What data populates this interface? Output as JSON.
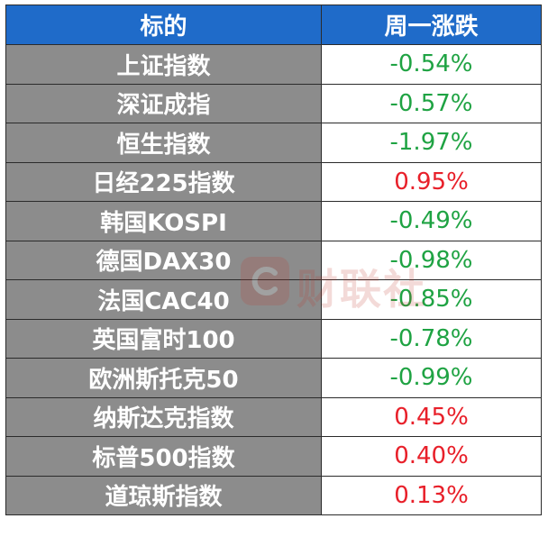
{
  "header": {
    "col_name": "标的",
    "col_change": "周一涨跌"
  },
  "colors": {
    "header_bg": "#1f6bc9",
    "name_bg": "#8c8c8c",
    "up": "#e8202a",
    "down": "#1fa343"
  },
  "rows": [
    {
      "name": "上证指数",
      "change": "-0.54%",
      "dir": "down"
    },
    {
      "name": "深证成指",
      "change": "-0.57%",
      "dir": "down"
    },
    {
      "name": "恒生指数",
      "change": "-1.97%",
      "dir": "down"
    },
    {
      "name": "日经225指数",
      "change": "0.95%",
      "dir": "up"
    },
    {
      "name": "韩国KOSPI",
      "change": "-0.49%",
      "dir": "down"
    },
    {
      "name": "德国DAX30",
      "change": "-0.98%",
      "dir": "down"
    },
    {
      "name": "法国CAC40",
      "change": "-0.85%",
      "dir": "down"
    },
    {
      "name": "英国富时100",
      "change": "-0.78%",
      "dir": "down"
    },
    {
      "name": "欧洲斯托克50",
      "change": "-0.99%",
      "dir": "down"
    },
    {
      "name": "纳斯达克指数",
      "change": "0.45%",
      "dir": "up"
    },
    {
      "name": "标普500指数",
      "change": "0.40%",
      "dir": "up"
    },
    {
      "name": "道琼斯指数",
      "change": "0.13%",
      "dir": "up"
    }
  ],
  "watermark": {
    "text": "财联社",
    "icon": "cls-logo-icon"
  }
}
